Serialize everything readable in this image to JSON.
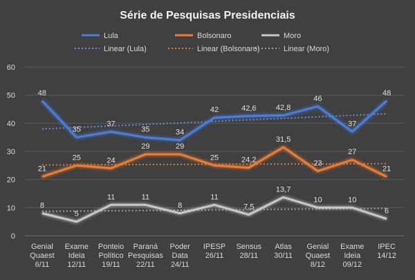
{
  "chart_data": {
    "type": "line",
    "title": "Série de Pesquisas Presidenciais",
    "categories": [
      [
        "Genial",
        "Quaest",
        "6/11"
      ],
      [
        "Exame",
        "Ideia",
        "12/11"
      ],
      [
        "Ponteio",
        "Político",
        "19/11"
      ],
      [
        "Paraná",
        "Pesquisas",
        "22/11"
      ],
      [
        "Poder",
        "Data",
        "24/11"
      ],
      [
        "IPESP",
        "26/11"
      ],
      [
        "Sensus",
        "28/11"
      ],
      [
        "Atlas",
        "30/11"
      ],
      [
        "Genial",
        "Quaest",
        "8/12"
      ],
      [
        "Exame",
        "Ideia",
        "09/12"
      ],
      [
        "IPEC",
        "14/12"
      ]
    ],
    "series": [
      {
        "name": "Lula",
        "color": "#4a7ee0",
        "values": [
          48,
          35,
          37,
          35,
          34,
          42,
          42.6,
          42.8,
          46,
          37,
          48
        ],
        "labels": [
          "48",
          "35",
          "37",
          "35",
          "34",
          "42",
          "42,6",
          "42,8",
          "46",
          "37",
          "48"
        ]
      },
      {
        "name": "Bolsonaro",
        "color": "#ee7d31",
        "values": [
          21,
          25,
          24,
          29,
          29,
          25,
          24.2,
          31.5,
          23,
          27,
          21
        ],
        "labels": [
          "21",
          "25",
          "24",
          "29",
          "29",
          "25",
          "24,2",
          "31,5",
          "23",
          "27",
          "21"
        ]
      },
      {
        "name": "Moro",
        "color": "#c8c8c8",
        "values": [
          8,
          5,
          11,
          11,
          8,
          11,
          7.5,
          13.7,
          10,
          10,
          6
        ],
        "labels": [
          "8",
          "5",
          "11",
          "11",
          "8",
          "11",
          "7,5",
          "13,7",
          "10",
          "10",
          "6"
        ]
      }
    ],
    "trendlines": [
      {
        "name": "Linear (Lula)",
        "series": "Lula"
      },
      {
        "name": "Linear (Bolsonaro)",
        "series": "Bolsonaro"
      },
      {
        "name": "Linear (Moro)",
        "series": "Moro"
      }
    ],
    "ylim": [
      0,
      60
    ],
    "yticks": [
      0,
      10,
      20,
      30,
      40,
      50,
      60
    ],
    "grid": true,
    "legend_position": "top"
  }
}
